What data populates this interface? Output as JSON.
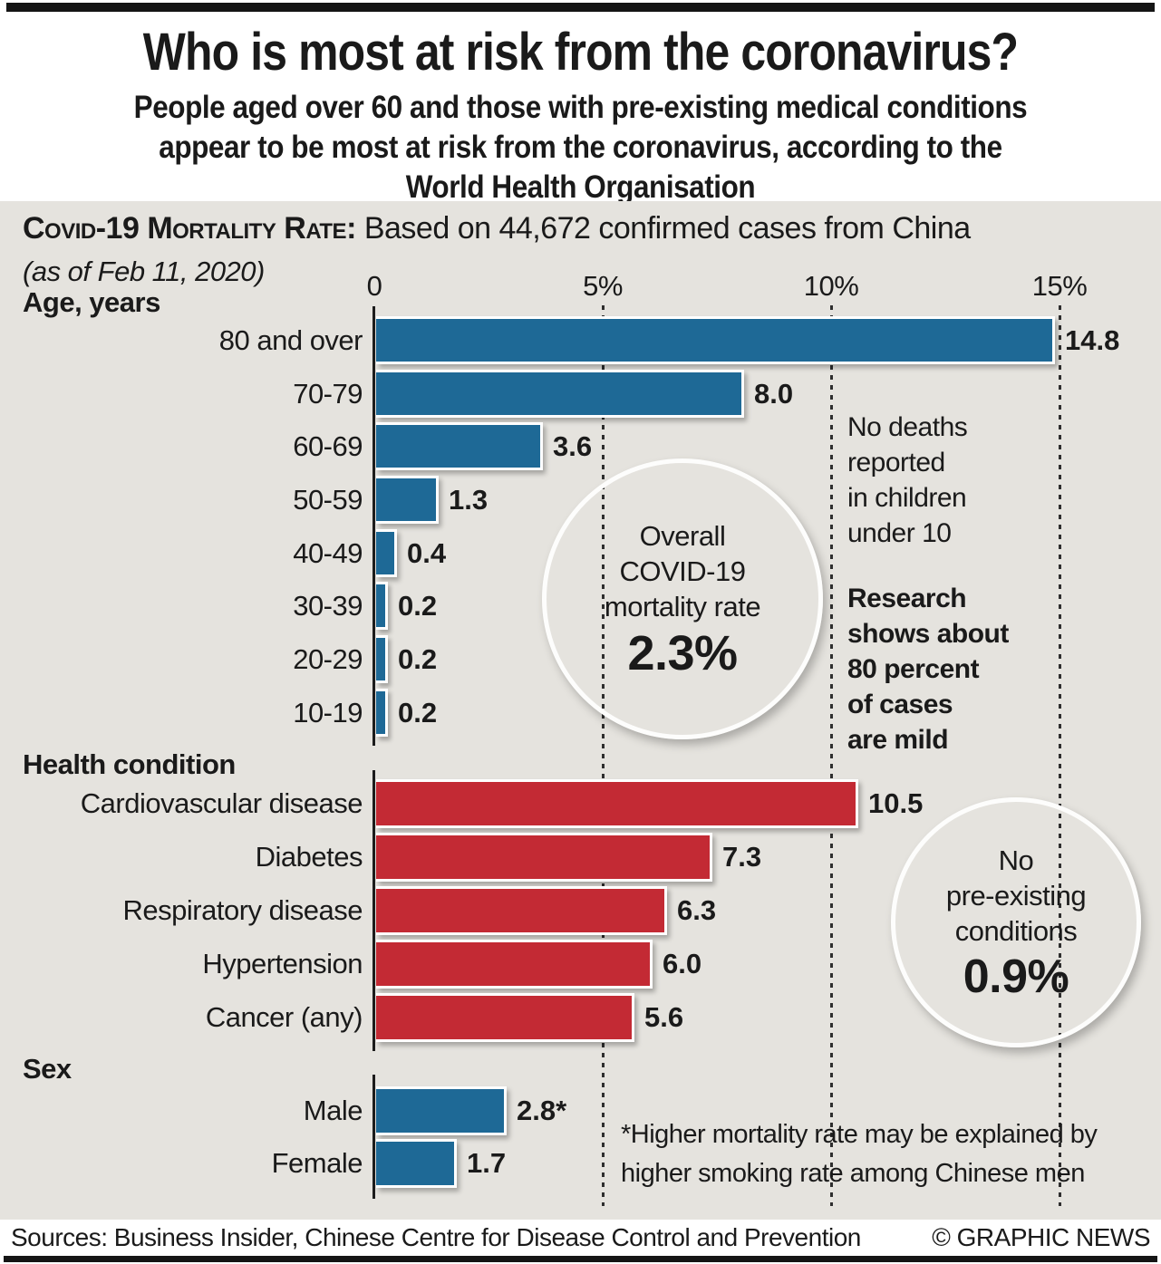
{
  "header": {
    "title": "Who is most at risk from the coronavirus?",
    "subtitle_lines": [
      "People aged over 60 and those with pre-existing medical conditions",
      "appear to be most at risk from the coronavirus, according to the",
      "World Health Organisation"
    ]
  },
  "panel_heading": {
    "smallcaps": "Covid-19 Mortality Rate:",
    "rest": " Based on 44,672 confirmed cases from China",
    "date": "(as of Feb 11, 2020)"
  },
  "chart_data": {
    "type": "bar",
    "orientation": "horizontal",
    "unit": "percent",
    "axis": {
      "tick_labels": [
        "0",
        "5%",
        "10%",
        "15%"
      ],
      "tick_values": [
        0,
        5,
        10,
        15
      ],
      "xlim": [
        0,
        15.5
      ],
      "gridlines": "dashed-vertical"
    },
    "groups": [
      {
        "label": "Age, years",
        "color_key": "blue",
        "categories": [
          "80 and over",
          "70-79",
          "60-69",
          "50-59",
          "40-49",
          "30-39",
          "20-29",
          "10-19"
        ],
        "values": [
          14.8,
          8.0,
          3.6,
          1.3,
          0.4,
          0.2,
          0.2,
          0.2
        ],
        "value_labels": [
          "14.8",
          "8.0",
          "3.6",
          "1.3",
          "0.4",
          "0.2",
          "0.2",
          "0.2"
        ]
      },
      {
        "label": "Health condition",
        "color_key": "red",
        "categories": [
          "Cardiovascular disease",
          "Diabetes",
          "Respiratory disease",
          "Hypertension",
          "Cancer (any)"
        ],
        "values": [
          10.5,
          7.3,
          6.3,
          6.0,
          5.6
        ],
        "value_labels": [
          "10.5",
          "7.3",
          "6.3",
          "6.0",
          "5.6"
        ]
      },
      {
        "label": "Sex",
        "color_key": "blue",
        "categories": [
          "Male",
          "Female"
        ],
        "values": [
          2.8,
          1.7
        ],
        "value_labels": [
          "2.8*",
          "1.7"
        ]
      }
    ]
  },
  "annotations": {
    "overall_circle": {
      "lines": [
        "Overall",
        "COVID-19",
        "mortality rate"
      ],
      "value": "2.3%"
    },
    "no_conditions_circle": {
      "lines": [
        "No",
        "pre-existing",
        "conditions"
      ],
      "value": "0.9%"
    },
    "children_note_lines": [
      "No deaths",
      "reported",
      "in children",
      "under 10"
    ],
    "mild_note_lines": [
      "Research",
      "shows about",
      "80 percent",
      "of cases",
      "are mild"
    ],
    "footnote_lines": [
      "*Higher mortality rate may be explained by",
      "higher smoking rate among Chinese men"
    ]
  },
  "footer": {
    "sources": "Sources: Business Insider, Chinese Centre for Disease Control and Prevention",
    "credit": "© GRAPHIC NEWS"
  },
  "colors": {
    "blue": "#1e6996",
    "red": "#c32a34",
    "yellow": "#fab416",
    "panel_bg": "#e5e3de",
    "bar_edge": "#ffffff",
    "text": "#1a1a1a"
  }
}
